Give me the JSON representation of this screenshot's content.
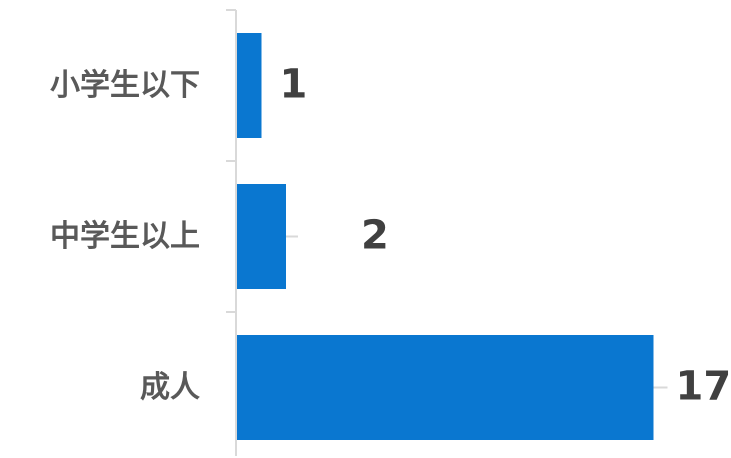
{
  "chart_data": {
    "type": "bar",
    "orientation": "horizontal",
    "categories": [
      "小学生以下",
      "中学生以上",
      "成人"
    ],
    "values": [
      1,
      2,
      17
    ],
    "data_labels": [
      "1",
      "2",
      "17"
    ],
    "title": "",
    "xlabel": "",
    "ylabel": "",
    "grid": false,
    "legend": "none",
    "colors": {
      "bar": "#0A77D0",
      "axis": "#D9D9D9",
      "category_text": "#595959",
      "value_text": "#404040"
    }
  }
}
